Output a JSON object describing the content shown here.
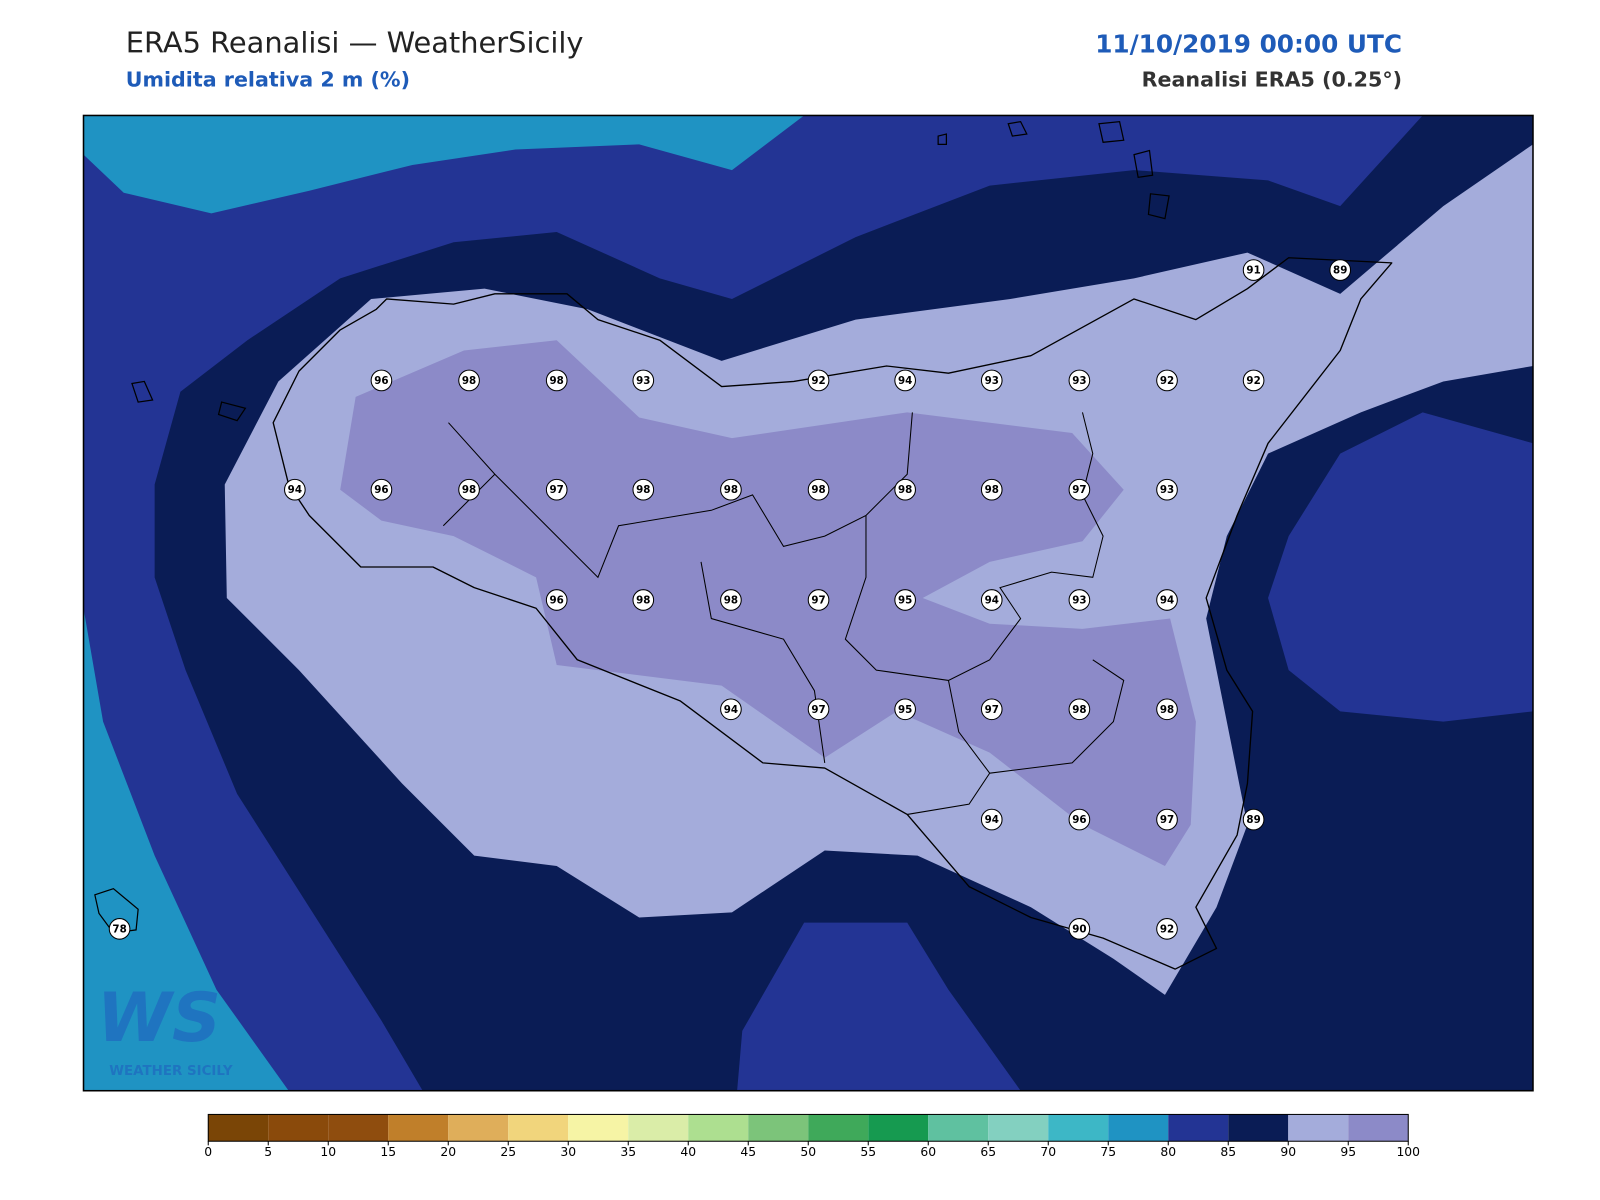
{
  "header": {
    "title": "ERA5 Reanalisi — WeatherSicily",
    "subtitle": "Umidita relativa 2 m (%)",
    "datetime": "11/10/2019 00:00 UTC",
    "source": "Reanalisi ERA5 (0.25°)"
  },
  "map": {
    "station_values": [
      91,
      89,
      96,
      98,
      98,
      93,
      92,
      94,
      93,
      93,
      92,
      92,
      94,
      96,
      98,
      97,
      98,
      98,
      98,
      98,
      98,
      97,
      93,
      96,
      98,
      98,
      97,
      95,
      94,
      93,
      94,
      94,
      97,
      95,
      97,
      98,
      98,
      94,
      96,
      97,
      89,
      78,
      90,
      92
    ]
  },
  "colorbar": {
    "clim": [
      0,
      100
    ],
    "ticks": [
      0,
      5,
      10,
      15,
      20,
      25,
      30,
      35,
      40,
      45,
      50,
      55,
      60,
      65,
      70,
      75,
      80,
      85,
      90,
      95,
      100
    ],
    "colors": [
      "#7a4506",
      "#8a4a0b",
      "#8f4d0e",
      "#c07f2a",
      "#dfae5a",
      "#f1d57c",
      "#f6f4a5",
      "#daeda8",
      "#addf90",
      "#7cc47a",
      "#3fa95a",
      "#169a50",
      "#5fc1a0",
      "#83d0c0",
      "#3db7c6",
      "#1f93c3",
      "#233494",
      "#0a1c55",
      "#a4acdb",
      "#8c8ac8"
    ]
  },
  "logo": {
    "mark": "WS",
    "text": "WEATHER SICILY"
  }
}
